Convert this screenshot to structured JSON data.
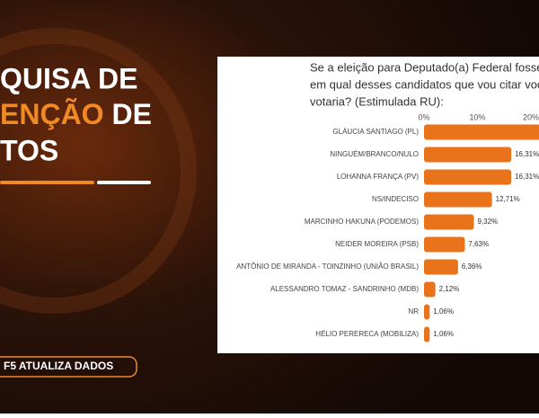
{
  "headline": {
    "line1": "QUISA DE",
    "line2_highlight": "ENÇÃO",
    "line2_rest": "DE",
    "line3": "TOS"
  },
  "badge": "F5 ATUALIZA DADOS",
  "chart_data": {
    "type": "hbar",
    "title": [
      "Se a eleição para Deputado(a) Federal fosse ho",
      "em qual desses candidatos que vou citar você",
      "votaria? (Estimulada RU):"
    ],
    "categories": [
      "GLÁUCIA SANTIAGO (PL)",
      "NINGUÉM/BRANCO/NULO",
      "LOHANNA FRANÇA (PV)",
      "NS/INDECISO",
      "MARCINHO HAKUNA (PODEMOS)",
      "NEIDER MOREIRA (PSB)",
      "ANTÔNIO DE MIRANDA - TOINZINHO (UNIÃO BRASIL)",
      "ALESSANDRO TOMAZ - SANDRINHO (MDB)",
      "NR",
      "HÉLIO PERERECA (MOBILIZA)"
    ],
    "values": [
      24,
      16.31,
      16.31,
      12.71,
      9.32,
      7.63,
      6.36,
      2.12,
      1.06,
      1.06
    ],
    "value_labels": [
      null,
      "16,31%",
      "16,31%",
      "12,71%",
      "9,32%",
      "7,63%",
      "6,36%",
      "2,12%",
      "1,06%",
      "1,06%"
    ],
    "color": "#e8731a",
    "xlim": [
      0,
      21.5
    ],
    "xticks": [
      {
        "value": 0,
        "label": "0%"
      },
      {
        "value": 10,
        "label": "10%"
      },
      {
        "value": 20,
        "label": "20%"
      }
    ],
    "grid": false
  }
}
